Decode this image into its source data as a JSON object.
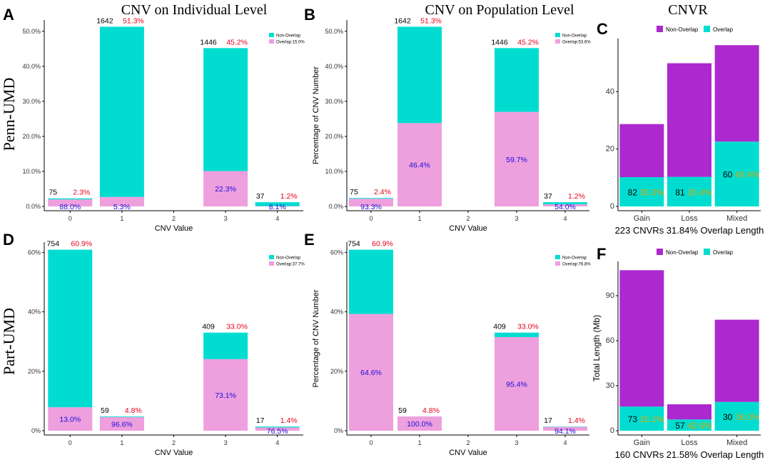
{
  "colors": {
    "non_overlap_teal": "#00DDD0",
    "overlap_pink": "#EE9FDE",
    "non_overlap_purple": "#AC28CF",
    "overlap_teal": "#00DDD0",
    "count_text": "#000000",
    "pct_text": "#E8001C",
    "inner_pct_text": "#1A10D8",
    "cnvr_pct_text": "#E0A800"
  },
  "row_labels": [
    "Penn-UMD",
    "Part-UMD"
  ],
  "column_titles": [
    "CNV on Individual Level",
    "CNV on Population Level",
    "CNVR"
  ],
  "chart_data": [
    {
      "panel": "A",
      "type": "bar",
      "stacked": true,
      "xlabel": "CNV Value",
      "ylabel": "",
      "categories": [
        "0",
        "1",
        "2",
        "3",
        "4"
      ],
      "ylim": [
        0,
        52
      ],
      "yticks": [
        0,
        10,
        20,
        30,
        40,
        50
      ],
      "ytick_labels": [
        "0.0%",
        "10.0%",
        "20.0%",
        "30.0%",
        "40.0%",
        "50.0%"
      ],
      "series": [
        {
          "name": "Overlap:15.0%",
          "values": [
            2.0,
            2.7,
            0,
            10.1,
            0.1
          ]
        },
        {
          "name": "Non-Overlap",
          "values": [
            0.3,
            48.6,
            0,
            35.1,
            1.1
          ]
        }
      ],
      "legend": [
        "Non-Overlap",
        "Overlap:15.0%"
      ],
      "legend_position": "top-right",
      "count_labels": [
        "75",
        "1642",
        "",
        "1446",
        "37"
      ],
      "total_pct_labels": [
        "2.3%",
        "51.3%",
        "",
        "45.2%",
        "1.2%"
      ],
      "overlap_pct_labels": [
        "88.0%",
        "5.3%",
        "",
        "22.3%",
        "8.1%"
      ]
    },
    {
      "panel": "B",
      "type": "bar",
      "stacked": true,
      "xlabel": "CNV Value",
      "ylabel": "Percentage of CNV Number",
      "categories": [
        "0",
        "1",
        "2",
        "3",
        "4"
      ],
      "ylim": [
        0,
        52
      ],
      "yticks": [
        0,
        10,
        20,
        30,
        40,
        50
      ],
      "ytick_labels": [
        "0.0%",
        "10.0%",
        "20.0%",
        "30.0%",
        "40.0%",
        "50.0%"
      ],
      "series": [
        {
          "name": "Overlap:53.6%",
          "values": [
            2.2,
            23.8,
            0,
            27.0,
            0.6
          ]
        },
        {
          "name": "Non-Overlap",
          "values": [
            0.2,
            27.5,
            0,
            18.2,
            0.6
          ]
        }
      ],
      "legend": [
        "Non-Overlap",
        "Overlap:53.6%"
      ],
      "legend_position": "top-right",
      "count_labels": [
        "75",
        "1642",
        "",
        "1446",
        "37"
      ],
      "total_pct_labels": [
        "2.4%",
        "51.3%",
        "",
        "45.2%",
        "1.2%"
      ],
      "overlap_pct_labels": [
        "93.3%",
        "46.4%",
        "",
        "59.7%",
        "54.0%"
      ]
    },
    {
      "panel": "C",
      "type": "bar",
      "stacked": true,
      "xlabel": "223 CNVRs 31.84% Overlap Length",
      "ylabel": "",
      "categories": [
        "Gain",
        "Loss",
        "Mixed"
      ],
      "ylim": [
        0,
        57
      ],
      "yticks": [
        0,
        20,
        40
      ],
      "ytick_labels": [
        "0",
        "20",
        "40"
      ],
      "series": [
        {
          "name": "Overlap",
          "values": [
            10.2,
            10.3,
            22.6
          ]
        },
        {
          "name": "Non-Overlap",
          "values": [
            18.5,
            39.6,
            33.6
          ]
        }
      ],
      "legend": [
        "Non-Overlap",
        "Overlap"
      ],
      "legend_position": "top",
      "count_labels": [
        "82",
        "81",
        "60"
      ],
      "overlap_pct_labels": [
        "35.0%",
        "20.4%",
        "40.4%"
      ]
    },
    {
      "panel": "D",
      "type": "bar",
      "stacked": true,
      "xlabel": "CNV Value",
      "ylabel": "",
      "categories": [
        "0",
        "1",
        "2",
        "3",
        "4"
      ],
      "ylim": [
        0,
        62
      ],
      "yticks": [
        0,
        20,
        40,
        60
      ],
      "ytick_labels": [
        "0%",
        "20%",
        "40%",
        "60%"
      ],
      "series": [
        {
          "name": "Overlap:37.7%",
          "values": [
            7.9,
            4.6,
            0,
            24.1,
            1.1
          ]
        },
        {
          "name": "Non-Overlap",
          "values": [
            53.0,
            0.2,
            0,
            8.9,
            0.3
          ]
        }
      ],
      "legend": [
        "Non-Overlap",
        "Overlap:37.7%"
      ],
      "legend_position": "top-right",
      "count_labels": [
        "754",
        "59",
        "",
        "409",
        "17"
      ],
      "total_pct_labels": [
        "60.9%",
        "4.8%",
        "",
        "33.0%",
        "1.4%"
      ],
      "overlap_pct_labels": [
        "13.0%",
        "96.6%",
        "",
        "73.1%",
        "76.5%"
      ]
    },
    {
      "panel": "E",
      "type": "bar",
      "stacked": true,
      "xlabel": "CNV Value",
      "ylabel": "Percentage of CNV Number",
      "categories": [
        "0",
        "1",
        "2",
        "3",
        "4"
      ],
      "ylim": [
        0,
        62
      ],
      "yticks": [
        0,
        20,
        40,
        60
      ],
      "ytick_labels": [
        "0%",
        "20%",
        "40%",
        "60%"
      ],
      "series": [
        {
          "name": "Overlap:76.8%",
          "values": [
            39.3,
            4.8,
            0,
            31.5,
            1.3
          ]
        },
        {
          "name": "Non-Overlap",
          "values": [
            21.6,
            0,
            0,
            1.5,
            0.1
          ]
        }
      ],
      "legend": [
        "Non-Overlap",
        "Overlap:76.8%"
      ],
      "legend_position": "top-right",
      "count_labels": [
        "754",
        "59",
        "",
        "409",
        "17"
      ],
      "total_pct_labels": [
        "60.9%",
        "4.8%",
        "",
        "33.0%",
        "1.4%"
      ],
      "overlap_pct_labels": [
        "64.6%",
        "100.0%",
        "",
        "95.4%",
        "94.1%"
      ]
    },
    {
      "panel": "F",
      "type": "bar",
      "stacked": true,
      "xlabel": "160 CNVRs 21.58% Overlap Length",
      "ylabel": "Total Length (Mb)",
      "categories": [
        "Gain",
        "Loss",
        "Mixed"
      ],
      "ylim": [
        0,
        110
      ],
      "yticks": [
        0,
        30,
        60,
        90
      ],
      "ytick_labels": [
        "0",
        "30",
        "60",
        "90"
      ],
      "series": [
        {
          "name": "Overlap",
          "values": [
            16.1,
            7.5,
            19.2
          ]
        },
        {
          "name": "Non-Overlap",
          "values": [
            90.9,
            10.1,
            54.8
          ]
        }
      ],
      "legend": [
        "Non-Overlap",
        "Overlap"
      ],
      "legend_position": "top",
      "count_labels": [
        "73",
        "57",
        "30"
      ],
      "overlap_pct_labels": [
        "15.1%",
        "42.6%",
        "26.0%"
      ]
    }
  ]
}
